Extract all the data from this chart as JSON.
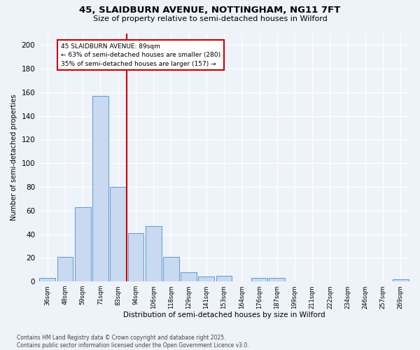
{
  "title1": "45, SLAIDBURN AVENUE, NOTTINGHAM, NG11 7FT",
  "title2": "Size of property relative to semi-detached houses in Wilford",
  "xlabel": "Distribution of semi-detached houses by size in Wilford",
  "ylabel": "Number of semi-detached properties",
  "bin_labels": [
    "36sqm",
    "48sqm",
    "59sqm",
    "71sqm",
    "83sqm",
    "94sqm",
    "106sqm",
    "118sqm",
    "129sqm",
    "141sqm",
    "153sqm",
    "164sqm",
    "176sqm",
    "187sqm",
    "199sqm",
    "211sqm",
    "222sqm",
    "234sqm",
    "246sqm",
    "257sqm",
    "269sqm"
  ],
  "bar_heights": [
    3,
    21,
    63,
    157,
    80,
    41,
    47,
    21,
    8,
    4,
    5,
    0,
    3,
    3,
    0,
    0,
    0,
    0,
    0,
    0,
    2
  ],
  "bar_color": "#c8d9f0",
  "bar_edge_color": "#5b9bd5",
  "property_line_label": "45 SLAIDBURN AVENUE: 89sqm",
  "pct_smaller": "63% of semi-detached houses are smaller (280)",
  "pct_larger": "35% of semi-detached houses are larger (157)",
  "annotation_box_color": "#ffffff",
  "annotation_box_edge": "#cc0000",
  "vline_color": "#cc0000",
  "ylim": [
    0,
    210
  ],
  "yticks": [
    0,
    20,
    40,
    60,
    80,
    100,
    120,
    140,
    160,
    180,
    200
  ],
  "footer1": "Contains HM Land Registry data © Crown copyright and database right 2025.",
  "footer2": "Contains public sector information licensed under the Open Government Licence v3.0.",
  "bg_color": "#eef2f9"
}
